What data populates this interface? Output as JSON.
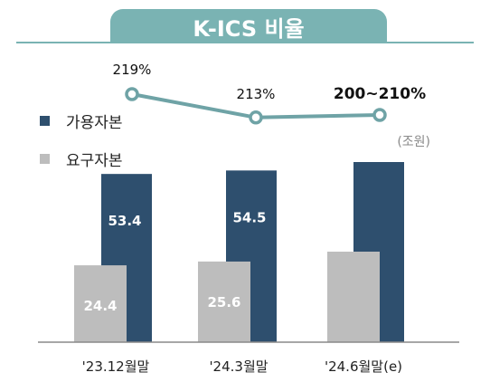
{
  "title": "K-ICS 비율",
  "unit": "(조원)",
  "legend": [
    {
      "label": "가용자본",
      "color": "#2e4f6e"
    },
    {
      "label": "요구자본",
      "color": "#bdbdbd"
    }
  ],
  "chart_data": {
    "type": "bar",
    "categories": [
      "'23.12월말",
      "'24.3월말",
      "'24.6월말(e)"
    ],
    "series": [
      {
        "name": "요구자본",
        "values": [
          24.4,
          25.6,
          null
        ],
        "labels": [
          "24.4",
          "25.6",
          ""
        ],
        "color": "#bdbdbd"
      },
      {
        "name": "가용자본",
        "values": [
          53.4,
          54.5,
          null
        ],
        "labels": [
          "53.4",
          "54.5",
          ""
        ],
        "color": "#2e4f6e"
      }
    ],
    "ratio_line": {
      "name": "K-ICS 비율",
      "values": [
        219,
        213,
        205
      ],
      "labels": [
        "219%",
        "213%",
        "200~210%"
      ],
      "color": "#6fa3a6"
    },
    "ylabel": "(조원)"
  }
}
